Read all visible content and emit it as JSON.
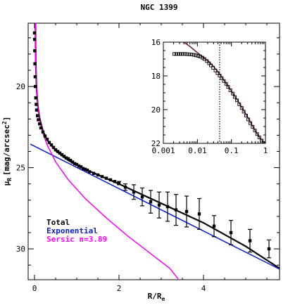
{
  "chart_data": [
    {
      "type": "scatter",
      "title": "NGC 1399",
      "xlabel_main": "R/R",
      "xlabel_sub": "e",
      "ylabel_main": "μ",
      "ylabel_sub": "R",
      "ylabel_units": "[mag/arcsec",
      "ylabel_units_sup": "2",
      "ylabel_units_end": "]",
      "xlim": [
        -0.15,
        5.8
      ],
      "ylim": [
        31.9,
        16.1
      ],
      "y_inverted": true,
      "x_ticks": [
        0,
        2,
        4
      ],
      "y_ticks": [
        20,
        25,
        30
      ],
      "grid": false,
      "legend": {
        "placement": "bottom-left",
        "entries": [
          {
            "label": "Total",
            "color": "#000000"
          },
          {
            "label": "Exponential",
            "color": "#0a1ecc"
          },
          {
            "label": "Sersic n=3.89",
            "color": "#ff00ff"
          }
        ]
      },
      "series": [
        {
          "name": "Data",
          "kind": "points_with_errorbars",
          "x": [
            0.0,
            0.003,
            0.006,
            0.01,
            0.015,
            0.02,
            0.03,
            0.04,
            0.05,
            0.07,
            0.09,
            0.12,
            0.15,
            0.2,
            0.25,
            0.3,
            0.35,
            0.4,
            0.45,
            0.5,
            0.55,
            0.6,
            0.65,
            0.7,
            0.75,
            0.8,
            0.85,
            0.9,
            0.95,
            1.0,
            1.05,
            1.1,
            1.15,
            1.2,
            1.25,
            1.3,
            1.4,
            1.5,
            1.6,
            1.7,
            1.8,
            1.9,
            2.0,
            2.15,
            2.35,
            2.55,
            2.75,
            2.95,
            3.15,
            3.35,
            3.6,
            3.9,
            4.25,
            4.65,
            5.1,
            5.55
          ],
          "y": [
            16.7,
            17.1,
            17.8,
            18.6,
            19.4,
            20.0,
            20.7,
            21.1,
            21.45,
            21.8,
            22.05,
            22.3,
            22.55,
            22.8,
            23.05,
            23.25,
            23.45,
            23.6,
            23.75,
            23.9,
            24.0,
            24.1,
            24.2,
            24.3,
            24.4,
            24.45,
            24.55,
            24.65,
            24.75,
            24.8,
            24.9,
            24.95,
            25.05,
            25.1,
            25.15,
            25.25,
            25.35,
            25.45,
            25.55,
            25.65,
            25.75,
            25.85,
            25.95,
            26.2,
            26.5,
            26.8,
            27.1,
            27.3,
            27.4,
            27.6,
            27.7,
            27.85,
            28.6,
            29.0,
            29.5,
            30.0
          ],
          "yerr": [
            0,
            0,
            0,
            0,
            0,
            0,
            0,
            0,
            0,
            0,
            0,
            0,
            0,
            0,
            0,
            0,
            0,
            0,
            0,
            0,
            0,
            0,
            0,
            0,
            0,
            0,
            0,
            0,
            0,
            0,
            0,
            0,
            0,
            0,
            0,
            0,
            0,
            0,
            0,
            0,
            0,
            0,
            0.1,
            0.2,
            0.45,
            0.55,
            0.7,
            0.8,
            0.9,
            0.95,
            0.95,
            0.95,
            0.65,
            0.75,
            0.7,
            0.55
          ]
        },
        {
          "name": "Total",
          "kind": "line",
          "color": "#000000",
          "x": [
            0.02,
            0.03,
            0.05,
            0.08,
            0.12,
            0.2,
            0.3,
            0.5,
            0.8,
            1.2,
            2.0,
            3.0,
            4.0,
            5.0,
            5.8
          ],
          "y": [
            16.1,
            18.6,
            20.2,
            21.25,
            21.95,
            22.75,
            23.3,
            23.95,
            24.55,
            25.1,
            26.0,
            27.2,
            28.4,
            29.85,
            31.2
          ]
        },
        {
          "name": "Exponential",
          "kind": "line",
          "color": "#0a1ecc",
          "x": [
            -0.1,
            5.8
          ],
          "y": [
            23.55,
            31.25
          ]
        },
        {
          "name": "Sersic n=3.89",
          "kind": "line",
          "color": "#ff00ff",
          "x": [
            0.02,
            0.03,
            0.05,
            0.08,
            0.12,
            0.2,
            0.3,
            0.5,
            0.8,
            1.2,
            1.7,
            2.2,
            2.7,
            3.2,
            3.4
          ],
          "y": [
            16.1,
            18.6,
            20.2,
            21.3,
            22.05,
            22.9,
            23.6,
            24.65,
            25.75,
            26.9,
            28.1,
            29.2,
            30.2,
            31.2,
            31.85
          ]
        }
      ]
    },
    {
      "type": "scatter",
      "title": "",
      "x_scale": "log",
      "xlim": [
        0.001,
        1
      ],
      "ylim": [
        22,
        16
      ],
      "y_inverted": true,
      "x_ticks": [
        0.001,
        0.01,
        0.1,
        1
      ],
      "x_tick_labels": [
        "0.001",
        "0.01",
        "0.1",
        "1"
      ],
      "y_ticks": [
        16,
        18,
        20,
        22
      ],
      "vline_x": 0.045,
      "series": [
        {
          "name": "Data",
          "kind": "points",
          "x": [
            0.0021,
            0.0024,
            0.0028,
            0.0032,
            0.0037,
            0.0043,
            0.005,
            0.0058,
            0.0067,
            0.0078,
            0.009,
            0.0105,
            0.012,
            0.014,
            0.016,
            0.019,
            0.022,
            0.025,
            0.029,
            0.034,
            0.039,
            0.045,
            0.052,
            0.06,
            0.07,
            0.08,
            0.093,
            0.11,
            0.125,
            0.145,
            0.17,
            0.2,
            0.23,
            0.27,
            0.31,
            0.36,
            0.42,
            0.49,
            0.57,
            0.66,
            0.77,
            0.9,
            1.0
          ],
          "y": [
            16.7,
            16.7,
            16.7,
            16.7,
            16.7,
            16.7,
            16.71,
            16.72,
            16.73,
            16.75,
            16.78,
            16.81,
            16.85,
            16.92,
            17.0,
            17.12,
            17.25,
            17.38,
            17.52,
            17.68,
            17.83,
            17.98,
            18.13,
            18.3,
            18.47,
            18.65,
            18.85,
            19.05,
            19.25,
            19.45,
            19.68,
            19.9,
            20.12,
            20.35,
            20.58,
            20.8,
            21.02,
            21.24,
            21.45,
            21.64,
            21.83,
            21.98,
            22.05
          ]
        },
        {
          "name": "Fit",
          "kind": "line",
          "color": "#6a2050",
          "x": [
            0.004,
            0.006,
            0.01,
            0.015,
            0.02,
            0.03,
            0.045,
            0.07,
            0.1,
            0.15,
            0.2,
            0.3,
            0.5,
            0.7,
            1.0
          ],
          "y": [
            16.0,
            16.25,
            16.62,
            16.9,
            17.1,
            17.45,
            17.9,
            18.45,
            18.9,
            19.45,
            19.85,
            20.45,
            21.25,
            21.7,
            22.05
          ]
        }
      ]
    }
  ]
}
